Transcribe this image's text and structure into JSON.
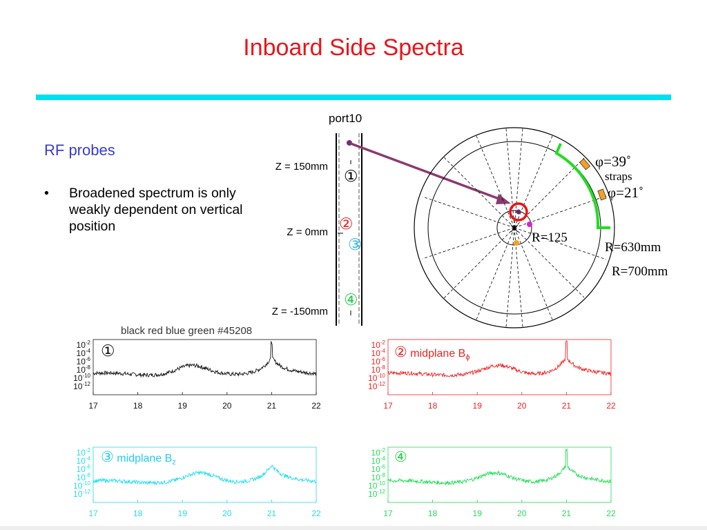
{
  "title": "Inboard Side Spectra",
  "colors": {
    "title": "#e8151b",
    "rule": "#00e0f0",
    "heading": "#3a3acc",
    "black": "#111111",
    "red": "#ee2222",
    "blue": "#22ddee",
    "green": "#22dd55"
  },
  "left_panel": {
    "heading": "RF probes",
    "bullet_symbol": "•",
    "bullet_text": "Broadened spectrum is only weakly dependent on vertical position"
  },
  "probe_diagram": {
    "port_label": "port10",
    "z_labels": [
      "Z = 150mm",
      "Z = 0mm",
      "Z = -150mm"
    ],
    "probe_numbers": [
      "①",
      "②",
      "③",
      "④"
    ]
  },
  "top_view": {
    "phi_upper": "φ=39˚",
    "straps": "straps",
    "phi_lower": "φ=21˚",
    "r_inner": "R=125",
    "r_mid": "R=630mm",
    "r_outer": "R=700mm"
  },
  "shot_label": "black red blue green #45208",
  "plots": [
    {
      "tag": "①",
      "tag_label": "",
      "tag_sub": "",
      "color": "#111111"
    },
    {
      "tag": "②",
      "tag_label": "midplane B",
      "tag_sub": "ϕ",
      "color": "#ee2222"
    },
    {
      "tag": "③",
      "tag_label": "midplane B",
      "tag_sub": "z",
      "color": "#22ddee"
    },
    {
      "tag": "④",
      "tag_label": "",
      "tag_sub": "",
      "color": "#22dd55"
    }
  ],
  "chart_data": [
    {
      "type": "line",
      "series": [
        {
          "values": []
        }
      ],
      "xlim": [
        17,
        22
      ],
      "x_ticks": [
        "17",
        "18",
        "19",
        "20",
        "21",
        "22"
      ],
      "y_ticks": [
        "10-2",
        "10-4",
        "10-6",
        "10-8",
        "10-10",
        "10-12"
      ],
      "peaks": [
        19.2,
        21.0
      ],
      "grid": false
    },
    {
      "type": "line",
      "series": [
        {
          "values": []
        }
      ],
      "xlim": [
        17,
        22
      ],
      "x_ticks": [
        "17",
        "18",
        "19",
        "20",
        "21",
        "22"
      ],
      "y_ticks": [
        "10-2",
        "10-4",
        "10-6",
        "10-8",
        "10-10",
        "10-12"
      ],
      "peaks": [
        19.5,
        21.0
      ],
      "grid": false
    },
    {
      "type": "line",
      "series": [
        {
          "values": []
        }
      ],
      "xlim": [
        17,
        22
      ],
      "x_ticks": [
        "17",
        "18",
        "19",
        "20",
        "21",
        "22"
      ],
      "y_ticks": [
        "10-2",
        "10-4",
        "10-6",
        "10-8",
        "10-10",
        "10-12"
      ],
      "peaks": [
        19.4,
        21.0
      ],
      "grid": false
    },
    {
      "type": "line",
      "series": [
        {
          "values": []
        }
      ],
      "xlim": [
        17,
        22
      ],
      "x_ticks": [
        "17",
        "18",
        "19",
        "20",
        "21",
        "22"
      ],
      "y_ticks": [
        "10-2",
        "10-4",
        "10-6",
        "10-8",
        "10-10",
        "10-12"
      ],
      "peaks": [
        19.4,
        21.0
      ],
      "grid": false
    }
  ]
}
